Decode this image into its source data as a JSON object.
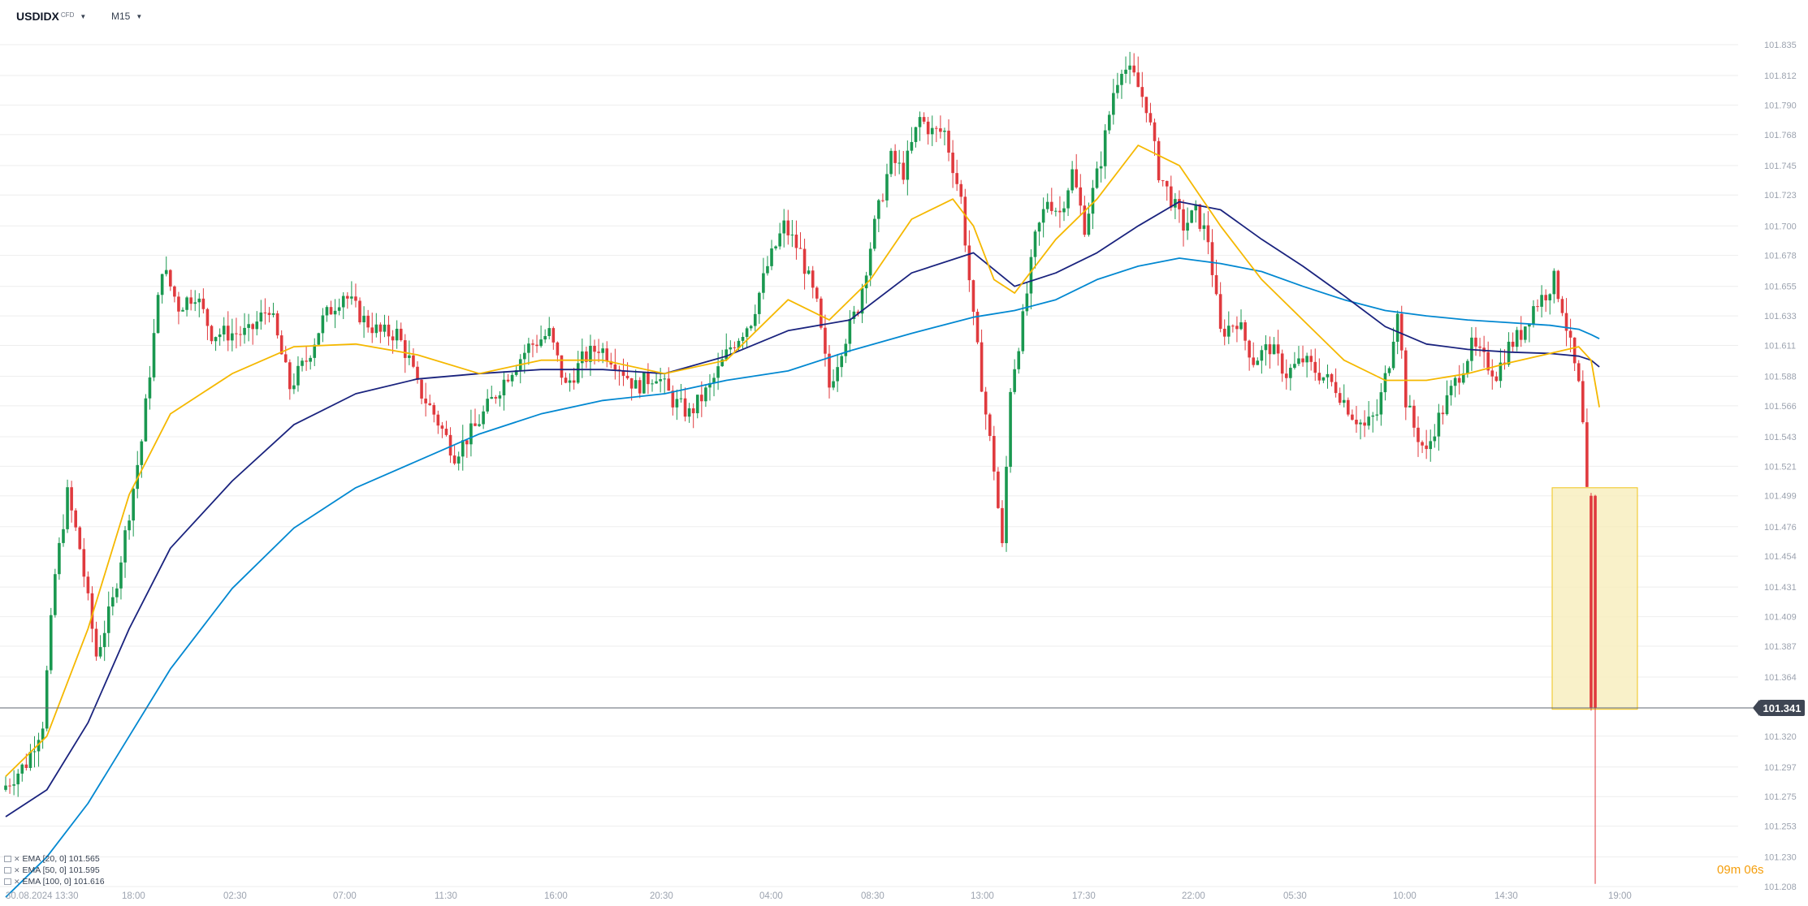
{
  "header": {
    "symbol": "USDIDX",
    "symbol_tag": "CFD",
    "timeframe": "M15",
    "caret": "▼"
  },
  "legend": [
    {
      "label": "EMA [20, 0] 101.565",
      "color": "#f5b800"
    },
    {
      "label": "EMA [50, 0] 101.595",
      "color": "#1a237e"
    },
    {
      "label": "EMA [100, 0] 101.616",
      "color": "#0288d1"
    }
  ],
  "current_price": "101.341",
  "countdown": {
    "minutes": "09",
    "m": "m",
    "seconds": "06",
    "s": "s"
  },
  "chart_data": {
    "type": "candlestick",
    "ylim": [
      101.208,
      101.845
    ],
    "y_ticks": [
      "101.835",
      "101.812",
      "101.790",
      "101.768",
      "101.745",
      "101.723",
      "101.700",
      "101.678",
      "101.655",
      "101.633",
      "101.611",
      "101.588",
      "101.566",
      "101.543",
      "101.521",
      "101.499",
      "101.476",
      "101.454",
      "101.431",
      "101.409",
      "101.387",
      "101.364",
      "101.341",
      "101.320",
      "101.297",
      "101.275",
      "101.253",
      "101.230",
      "101.208"
    ],
    "x_ticks": [
      "30.08.2024  13:30",
      "18:00",
      "02:30",
      "07:00",
      "11:30",
      "16:00",
      "20:30",
      "04:00",
      "08:30",
      "13:00",
      "17:30",
      "22:00",
      "05:30",
      "10:00",
      "14:30",
      "19:00"
    ],
    "grid": true,
    "colors": {
      "up": "#1a9850",
      "down": "#e03a3e",
      "ema20": "#f5b800",
      "ema50": "#1a237e",
      "ema100": "#0288d1",
      "highlight_fill": "#f7eebb",
      "highlight_stroke": "#f0c419"
    },
    "price_path": [
      [
        0,
        101.28
      ],
      [
        6,
        101.3
      ],
      [
        10,
        101.33
      ],
      [
        13,
        101.44
      ],
      [
        16,
        101.5
      ],
      [
        19,
        101.46
      ],
      [
        23,
        101.38
      ],
      [
        27,
        101.42
      ],
      [
        30,
        101.47
      ],
      [
        34,
        101.54
      ],
      [
        39,
        101.67
      ],
      [
        43,
        101.64
      ],
      [
        47,
        101.65
      ],
      [
        51,
        101.62
      ],
      [
        55,
        101.62
      ],
      [
        60,
        101.62
      ],
      [
        65,
        101.64
      ],
      [
        70,
        101.58
      ],
      [
        74,
        101.6
      ],
      [
        78,
        101.63
      ],
      [
        83,
        101.65
      ],
      [
        88,
        101.63
      ],
      [
        92,
        101.62
      ],
      [
        96,
        101.62
      ],
      [
        99,
        101.6
      ],
      [
        101,
        101.58
      ],
      [
        105,
        101.56
      ],
      [
        110,
        101.53
      ],
      [
        115,
        101.55
      ],
      [
        119,
        101.57
      ],
      [
        123,
        101.59
      ],
      [
        128,
        101.61
      ],
      [
        133,
        101.62
      ],
      [
        137,
        101.58
      ],
      [
        141,
        101.6
      ],
      [
        145,
        101.61
      ],
      [
        149,
        101.6
      ],
      [
        154,
        101.58
      ],
      [
        159,
        101.59
      ],
      [
        163,
        101.57
      ],
      [
        167,
        101.56
      ],
      [
        172,
        101.58
      ],
      [
        177,
        101.61
      ],
      [
        182,
        101.63
      ],
      [
        186,
        101.67
      ],
      [
        190,
        101.7
      ],
      [
        194,
        101.68
      ],
      [
        198,
        101.64
      ],
      [
        201,
        101.58
      ],
      [
        204,
        101.61
      ],
      [
        208,
        101.64
      ],
      [
        212,
        101.7
      ],
      [
        216,
        101.75
      ],
      [
        219,
        101.74
      ],
      [
        223,
        101.78
      ],
      [
        226,
        101.77
      ],
      [
        229,
        101.77
      ],
      [
        233,
        101.72
      ],
      [
        236,
        101.63
      ],
      [
        239,
        101.56
      ],
      [
        241,
        101.52
      ],
      [
        243,
        101.46
      ],
      [
        245,
        101.58
      ],
      [
        248,
        101.63
      ],
      [
        251,
        101.69
      ],
      [
        254,
        101.72
      ],
      [
        257,
        101.71
      ],
      [
        260,
        101.74
      ],
      [
        263,
        101.7
      ],
      [
        267,
        101.75
      ],
      [
        270,
        101.8
      ],
      [
        272,
        101.82
      ],
      [
        275,
        101.81
      ],
      [
        278,
        101.79
      ],
      [
        281,
        101.74
      ],
      [
        284,
        101.72
      ],
      [
        287,
        101.7
      ],
      [
        290,
        101.71
      ],
      [
        293,
        101.69
      ],
      [
        296,
        101.62
      ],
      [
        300,
        101.63
      ],
      [
        304,
        101.6
      ],
      [
        308,
        101.61
      ],
      [
        312,
        101.59
      ],
      [
        316,
        101.6
      ],
      [
        320,
        101.59
      ],
      [
        324,
        101.58
      ],
      [
        328,
        101.56
      ],
      [
        331,
        101.55
      ],
      [
        334,
        101.56
      ],
      [
        337,
        101.6
      ],
      [
        339,
        101.64
      ],
      [
        341,
        101.57
      ],
      [
        343,
        101.55
      ],
      [
        346,
        101.53
      ],
      [
        348,
        101.55
      ],
      [
        351,
        101.57
      ],
      [
        354,
        101.59
      ],
      [
        357,
        101.61
      ],
      [
        360,
        101.6
      ],
      [
        363,
        101.59
      ],
      [
        366,
        101.61
      ],
      [
        369,
        101.62
      ],
      [
        372,
        101.64
      ],
      [
        375,
        101.65
      ],
      [
        377,
        101.66
      ],
      [
        379,
        101.64
      ],
      [
        381,
        101.61
      ],
      [
        383,
        101.58
      ],
      [
        384,
        101.55
      ],
      [
        385,
        101.499
      ],
      [
        386,
        101.34
      ]
    ],
    "ema20": [
      [
        0,
        101.29
      ],
      [
        10,
        101.32
      ],
      [
        20,
        101.4
      ],
      [
        30,
        101.5
      ],
      [
        40,
        101.56
      ],
      [
        55,
        101.59
      ],
      [
        70,
        101.61
      ],
      [
        85,
        101.612
      ],
      [
        100,
        101.604
      ],
      [
        115,
        101.59
      ],
      [
        130,
        101.6
      ],
      [
        145,
        101.6
      ],
      [
        160,
        101.59
      ],
      [
        175,
        101.6
      ],
      [
        190,
        101.645
      ],
      [
        200,
        101.63
      ],
      [
        210,
        101.66
      ],
      [
        220,
        101.705
      ],
      [
        230,
        101.72
      ],
      [
        235,
        101.7
      ],
      [
        240,
        101.66
      ],
      [
        245,
        101.65
      ],
      [
        255,
        101.69
      ],
      [
        265,
        101.72
      ],
      [
        275,
        101.76
      ],
      [
        285,
        101.745
      ],
      [
        295,
        101.7
      ],
      [
        305,
        101.66
      ],
      [
        315,
        101.63
      ],
      [
        325,
        101.6
      ],
      [
        335,
        101.585
      ],
      [
        345,
        101.585
      ],
      [
        355,
        101.59
      ],
      [
        365,
        101.598
      ],
      [
        375,
        101.605
      ],
      [
        382,
        101.61
      ],
      [
        385,
        101.6
      ],
      [
        387,
        101.565
      ]
    ],
    "ema50": [
      [
        0,
        101.26
      ],
      [
        10,
        101.28
      ],
      [
        20,
        101.33
      ],
      [
        30,
        101.4
      ],
      [
        40,
        101.46
      ],
      [
        55,
        101.51
      ],
      [
        70,
        101.552
      ],
      [
        85,
        101.575
      ],
      [
        100,
        101.586
      ],
      [
        115,
        101.59
      ],
      [
        130,
        101.593
      ],
      [
        145,
        101.593
      ],
      [
        160,
        101.59
      ],
      [
        175,
        101.603
      ],
      [
        190,
        101.622
      ],
      [
        205,
        101.63
      ],
      [
        220,
        101.665
      ],
      [
        235,
        101.68
      ],
      [
        245,
        101.655
      ],
      [
        255,
        101.665
      ],
      [
        265,
        101.68
      ],
      [
        275,
        101.7
      ],
      [
        285,
        101.718
      ],
      [
        295,
        101.712
      ],
      [
        305,
        101.69
      ],
      [
        315,
        101.67
      ],
      [
        325,
        101.648
      ],
      [
        335,
        101.625
      ],
      [
        345,
        101.612
      ],
      [
        355,
        101.608
      ],
      [
        365,
        101.606
      ],
      [
        375,
        101.605
      ],
      [
        382,
        101.603
      ],
      [
        385,
        101.6
      ],
      [
        387,
        101.595
      ]
    ],
    "ema100": [
      [
        0,
        101.2
      ],
      [
        10,
        101.23
      ],
      [
        20,
        101.27
      ],
      [
        30,
        101.32
      ],
      [
        40,
        101.37
      ],
      [
        55,
        101.43
      ],
      [
        70,
        101.475
      ],
      [
        85,
        101.505
      ],
      [
        100,
        101.525
      ],
      [
        115,
        101.545
      ],
      [
        130,
        101.56
      ],
      [
        145,
        101.57
      ],
      [
        160,
        101.575
      ],
      [
        175,
        101.585
      ],
      [
        190,
        101.592
      ],
      [
        205,
        101.607
      ],
      [
        220,
        101.62
      ],
      [
        235,
        101.632
      ],
      [
        245,
        101.637
      ],
      [
        255,
        101.645
      ],
      [
        265,
        101.66
      ],
      [
        275,
        101.67
      ],
      [
        285,
        101.676
      ],
      [
        295,
        101.672
      ],
      [
        305,
        101.666
      ],
      [
        315,
        101.655
      ],
      [
        325,
        101.645
      ],
      [
        335,
        101.637
      ],
      [
        345,
        101.633
      ],
      [
        355,
        101.63
      ],
      [
        365,
        101.628
      ],
      [
        375,
        101.626
      ],
      [
        382,
        101.623
      ],
      [
        385,
        101.619
      ],
      [
        387,
        101.616
      ]
    ]
  }
}
